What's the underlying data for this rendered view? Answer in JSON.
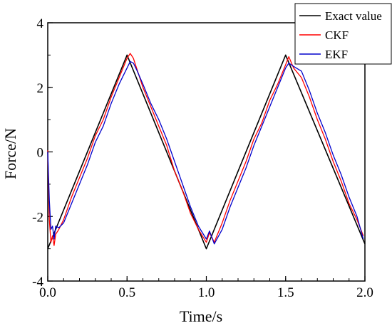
{
  "chart_data": {
    "type": "line",
    "title": "",
    "xlabel": "Time/s",
    "ylabel": "Force/N",
    "xlim": [
      0,
      2.0
    ],
    "ylim": [
      -4,
      4
    ],
    "xticks": [
      "0.0",
      "0.5",
      "1.0",
      "1.5",
      "2.0"
    ],
    "yticks": [
      "4",
      "2",
      "0",
      "-2",
      "-4"
    ],
    "grid": false,
    "legend_position": "top-right",
    "series": [
      {
        "name": "Exact value",
        "color": "#000000",
        "x": [
          0,
          0.5,
          1.0,
          1.5,
          2.0
        ],
        "y": [
          -3,
          3,
          -3,
          3,
          -2.85
        ]
      },
      {
        "name": "CKF",
        "color": "#ff0000",
        "x": [
          0.0,
          0.01,
          0.02,
          0.03,
          0.04,
          0.05,
          0.07,
          0.1,
          0.15,
          0.2,
          0.25,
          0.3,
          0.35,
          0.4,
          0.45,
          0.5,
          0.52,
          0.54,
          0.56,
          0.6,
          0.65,
          0.7,
          0.75,
          0.8,
          0.85,
          0.9,
          0.95,
          1.0,
          1.02,
          1.05,
          1.1,
          1.15,
          1.2,
          1.25,
          1.3,
          1.35,
          1.4,
          1.45,
          1.5,
          1.52,
          1.55,
          1.6,
          1.65,
          1.7,
          1.75,
          1.8,
          1.85,
          1.9,
          1.95,
          1.99
        ],
        "y": [
          0.05,
          -2.1,
          -2.8,
          -2.6,
          -2.9,
          -2.55,
          -2.4,
          -2.1,
          -1.4,
          -0.8,
          -0.2,
          0.5,
          1.0,
          1.7,
          2.3,
          2.9,
          3.05,
          2.9,
          2.6,
          2.0,
          1.4,
          0.8,
          0.2,
          -0.6,
          -1.2,
          -1.9,
          -2.4,
          -2.8,
          -2.5,
          -2.8,
          -2.2,
          -1.5,
          -0.9,
          -0.3,
          0.4,
          0.9,
          1.6,
          2.1,
          2.7,
          2.95,
          2.6,
          2.3,
          1.7,
          1.0,
          0.4,
          -0.3,
          -0.9,
          -1.6,
          -2.1,
          -2.6
        ]
      },
      {
        "name": "EKF",
        "color": "#0000cc",
        "x": [
          0.0,
          0.01,
          0.02,
          0.03,
          0.04,
          0.05,
          0.07,
          0.1,
          0.15,
          0.2,
          0.25,
          0.3,
          0.35,
          0.4,
          0.45,
          0.5,
          0.52,
          0.54,
          0.56,
          0.6,
          0.65,
          0.7,
          0.75,
          0.8,
          0.85,
          0.9,
          0.95,
          1.0,
          1.02,
          1.05,
          1.1,
          1.15,
          1.2,
          1.25,
          1.3,
          1.35,
          1.4,
          1.45,
          1.5,
          1.52,
          1.55,
          1.6,
          1.65,
          1.7,
          1.75,
          1.8,
          1.85,
          1.9,
          1.95,
          1.99
        ],
        "y": [
          0.0,
          -1.5,
          -2.4,
          -2.3,
          -2.7,
          -2.3,
          -2.35,
          -2.2,
          -1.6,
          -1.0,
          -0.4,
          0.3,
          0.8,
          1.5,
          2.1,
          2.6,
          2.8,
          2.75,
          2.55,
          2.1,
          1.5,
          1.0,
          0.4,
          -0.3,
          -1.0,
          -1.7,
          -2.3,
          -2.7,
          -2.45,
          -2.85,
          -2.4,
          -1.7,
          -1.1,
          -0.5,
          0.2,
          0.8,
          1.4,
          2.0,
          2.6,
          2.75,
          2.65,
          2.5,
          1.9,
          1.2,
          0.6,
          -0.1,
          -0.7,
          -1.4,
          -2.0,
          -2.7
        ]
      }
    ]
  }
}
